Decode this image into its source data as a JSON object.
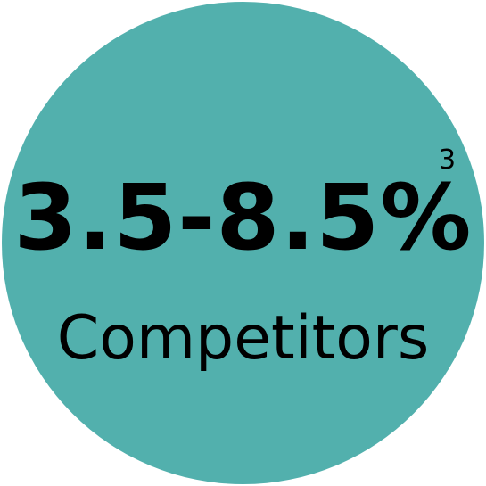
{
  "stat": {
    "value": "3.5-8.5%",
    "footnote": "3",
    "label": "Competitors"
  },
  "colors": {
    "circle_fill": "#52b0ad",
    "text": "#000000",
    "background": "#ffffff"
  }
}
